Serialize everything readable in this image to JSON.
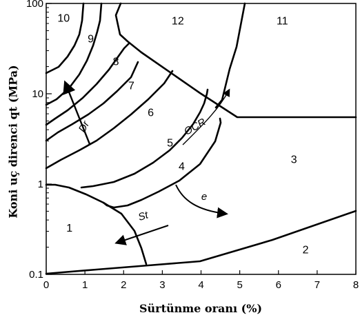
{
  "chart_data": {
    "type": "diagram",
    "xlabel": "Sürtünme oranı (%)",
    "ylabel": "Koni uç direnci qt (MPa)",
    "x_ticks": [
      "0",
      "1",
      "2",
      "3",
      "4",
      "5",
      "6",
      "7",
      "8"
    ],
    "y_ticks": [
      "0.1",
      "1",
      "10",
      "100"
    ],
    "xlim": [
      0,
      8
    ],
    "ylim": [
      0.1,
      100
    ],
    "y_scale": "log",
    "zones": [
      {
        "label": "1",
        "x": 0.6,
        "y": 0.33
      },
      {
        "label": "2",
        "x": 6.7,
        "y": 0.19
      },
      {
        "label": "3",
        "x": 6.4,
        "y": 1.9
      },
      {
        "label": "4",
        "x": 3.5,
        "y": 1.6
      },
      {
        "label": "5",
        "x": 3.2,
        "y": 2.9
      },
      {
        "label": "6",
        "x": 2.7,
        "y": 6.3
      },
      {
        "label": "7",
        "x": 2.2,
        "y": 12.5
      },
      {
        "label": "8",
        "x": 1.8,
        "y": 23
      },
      {
        "label": "9",
        "x": 1.15,
        "y": 41
      },
      {
        "label": "10",
        "x": 0.45,
        "y": 70
      },
      {
        "label": "11",
        "x": 6.1,
        "y": 65
      },
      {
        "label": "12",
        "x": 3.4,
        "y": 65
      }
    ],
    "annotations": [
      "Dr",
      "OCR",
      "e",
      "St"
    ]
  }
}
